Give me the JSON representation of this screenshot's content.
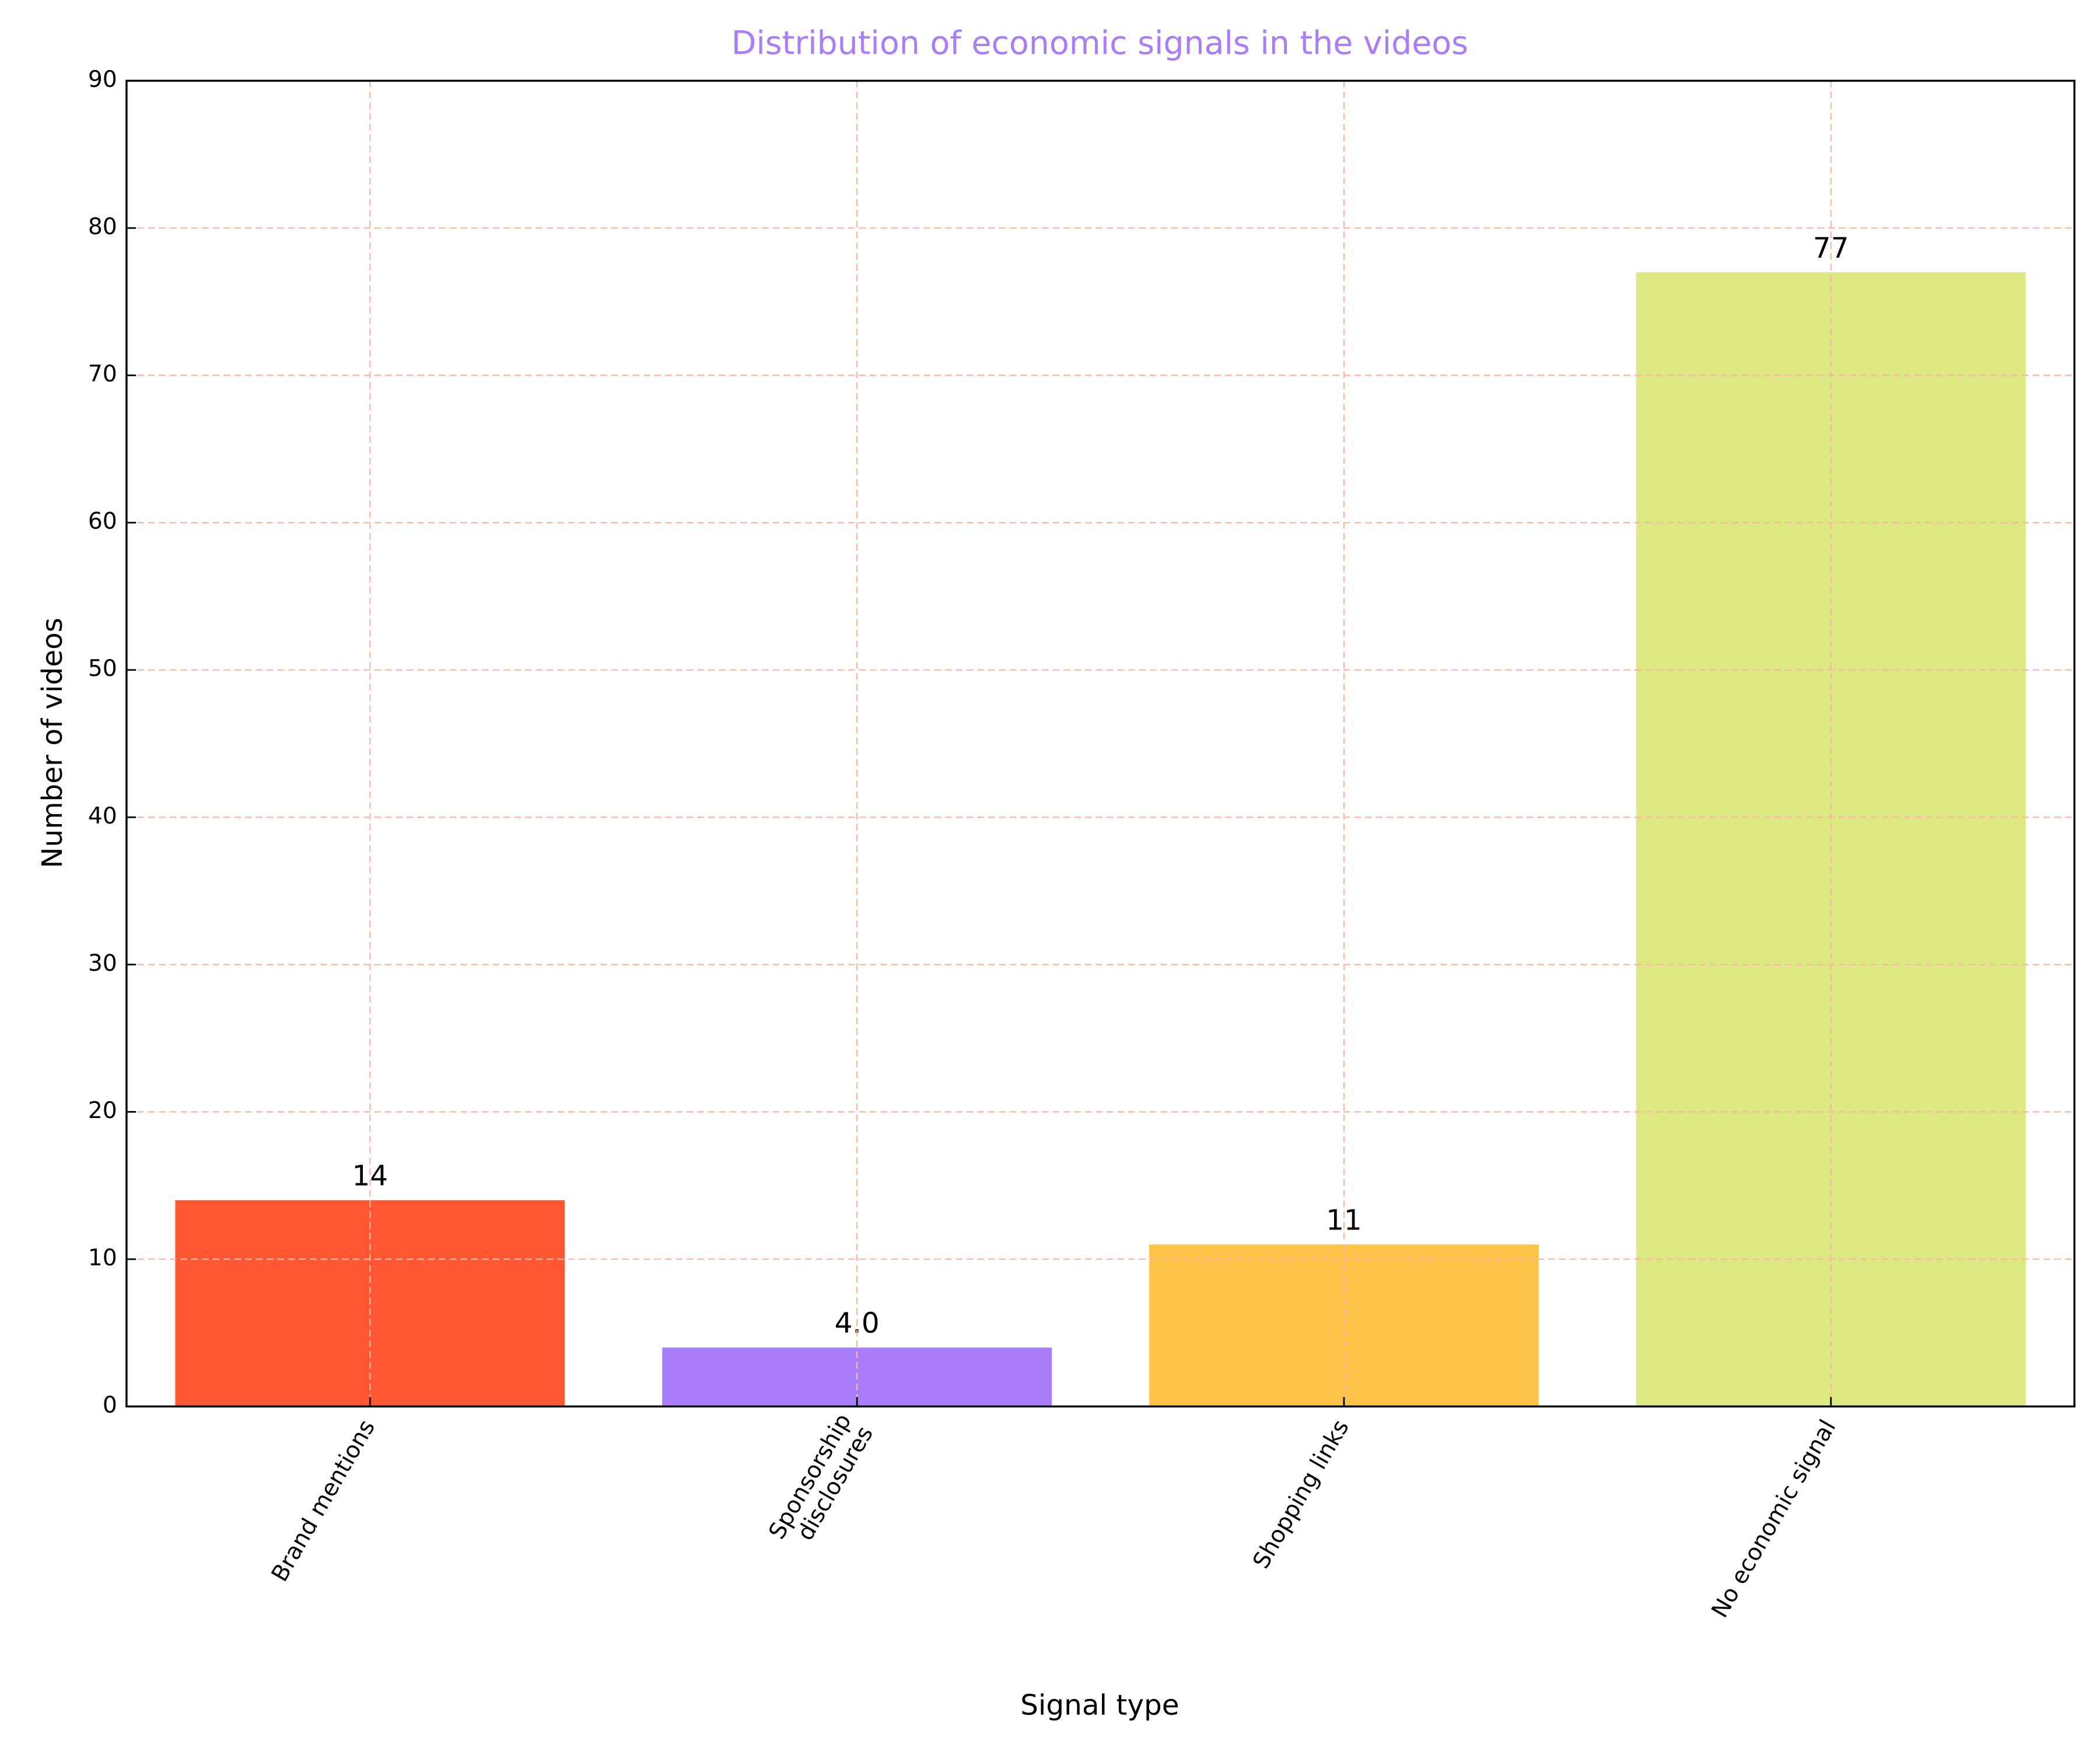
{
  "chart_data": {
    "type": "bar",
    "title": "Distribution of economic signals in the videos",
    "x_label": "Signal type",
    "y_label": "Number of videos",
    "categories": [
      "Brand mentions",
      "Sponsorship\ndisclosures",
      "Shopping links",
      "No economic signal"
    ],
    "values": [
      14,
      4,
      11,
      77
    ],
    "value_labels": [
      "14",
      "4.0",
      "11",
      "77"
    ],
    "colors": [
      "#ff5733",
      "#a97cfb",
      "#ffc34a",
      "#dee882"
    ],
    "title_color": "#a97cf8",
    "ylim": [
      0,
      90
    ],
    "yticks": [
      0,
      10,
      20,
      30,
      40,
      50,
      60,
      70,
      80,
      90
    ],
    "grid": true
  }
}
